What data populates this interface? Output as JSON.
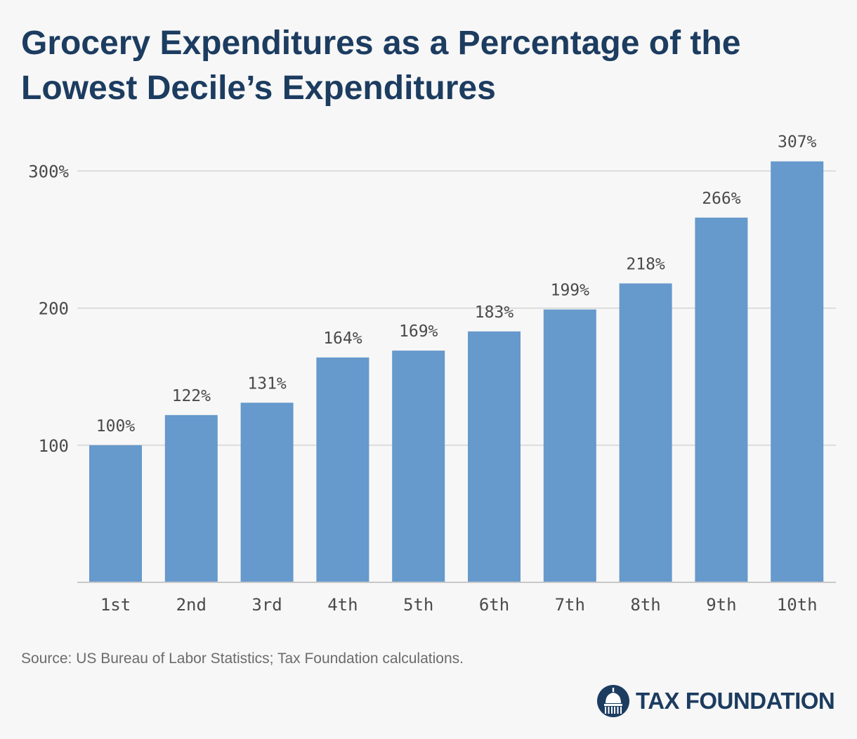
{
  "title": "Grocery Expenditures as a Percentage of the Lowest Decile’s Expenditures",
  "source": "Source: US Bureau of Labor Statistics; Tax Foundation calculations.",
  "logo": {
    "text": "TAX FOUNDATION",
    "icon": "capitol-dome-icon"
  },
  "colors": {
    "bar": "#6699cc",
    "title": "#1c3c60",
    "grid": "#d4d4d4",
    "text": "#4a4a4a"
  },
  "chart_data": {
    "type": "bar",
    "title": "Grocery Expenditures as a Percentage of the Lowest Decile’s Expenditures",
    "categories": [
      "1st",
      "2nd",
      "3rd",
      "4th",
      "5th",
      "6th",
      "7th",
      "8th",
      "9th",
      "10th"
    ],
    "values": [
      100,
      122,
      131,
      164,
      169,
      183,
      199,
      218,
      266,
      307
    ],
    "data_labels": [
      "100%",
      "122%",
      "131%",
      "164%",
      "169%",
      "183%",
      "199%",
      "218%",
      "266%",
      "307%"
    ],
    "y_ticks": [
      100,
      200,
      300
    ],
    "y_tick_labels": [
      "100",
      "200",
      "300%"
    ],
    "ylim": [
      0,
      307
    ],
    "grid": true,
    "legend": false
  }
}
